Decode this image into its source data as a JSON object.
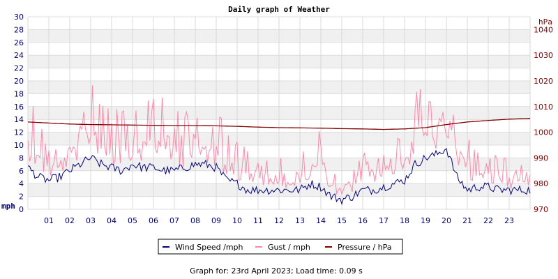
{
  "chart_data": {
    "type": "line",
    "title": "Daily graph of Weather",
    "y_left_unit": "mph",
    "y_right_unit": "hPa",
    "y_left_ticks": [
      "0",
      "2",
      "4",
      "6",
      "8",
      "10",
      "12",
      "14",
      "16",
      "18",
      "20",
      "22",
      "24",
      "26",
      "28",
      "30"
    ],
    "y_right_ticks": [
      "970",
      "980",
      "990",
      "1000",
      "1010",
      "1020",
      "1030",
      "1040"
    ],
    "x_ticks": [
      "01",
      "02",
      "03",
      "04",
      "05",
      "06",
      "07",
      "08",
      "09",
      "10",
      "11",
      "12",
      "13",
      "14",
      "15",
      "16",
      "17",
      "18",
      "19",
      "20",
      "21",
      "22",
      "23"
    ],
    "ylim_left": [
      0,
      30
    ],
    "ylim_right": [
      970,
      1045
    ],
    "xlim_hours": [
      0,
      24
    ],
    "grid": true,
    "legend": {
      "placement": "bottom-center"
    },
    "series": [
      {
        "name": "Wind Speed /mph",
        "axis": "left",
        "color": "#000080",
        "x": [
          0,
          0.5,
          1,
          1.5,
          2,
          2.5,
          3,
          3.5,
          4,
          4.5,
          5,
          5.5,
          6,
          6.5,
          7,
          7.5,
          8,
          8.5,
          9,
          9.5,
          10,
          10.5,
          11,
          11.5,
          12,
          12.5,
          13,
          13.5,
          14,
          14.5,
          15,
          15.5,
          16,
          16.5,
          17,
          17.5,
          18,
          18.5,
          19,
          19.5,
          20,
          20.5,
          21,
          21.5,
          22,
          22.5,
          23,
          23.5,
          24
        ],
        "values": [
          6.5,
          5,
          4.5,
          5,
          6,
          7,
          8,
          7,
          6.5,
          6,
          7,
          6.5,
          6.5,
          6,
          6,
          6.5,
          7,
          7,
          6.5,
          4.5,
          4,
          3,
          3,
          3,
          3,
          3,
          3,
          4,
          3.5,
          2,
          1.5,
          2,
          3,
          3,
          3.5,
          4,
          4.5,
          7,
          8,
          8.5,
          9.5,
          5,
          3,
          3.5,
          3.5,
          3,
          3,
          3,
          3
        ]
      },
      {
        "name": "Gust / mph",
        "axis": "left",
        "color": "#ff88aa",
        "x": [
          0,
          0.5,
          1,
          1.5,
          2,
          2.5,
          3,
          3.5,
          4,
          4.5,
          5,
          5.5,
          6,
          6.5,
          7,
          7.5,
          8,
          8.5,
          9,
          9.5,
          10,
          10.5,
          11,
          11.5,
          12,
          12.5,
          13,
          13.5,
          14,
          14.5,
          15,
          15.5,
          16,
          16.5,
          17,
          17.5,
          18,
          18.5,
          19,
          19.5,
          20,
          20.5,
          21,
          21.5,
          22,
          22.5,
          23,
          23.5,
          24
        ],
        "values": [
          12,
          9,
          7.5,
          8,
          10,
          12,
          15,
          12,
          10,
          10,
          12,
          11,
          13,
          11,
          10,
          10,
          11,
          11,
          10,
          8,
          7,
          6,
          6,
          5,
          5,
          5,
          5,
          7,
          9,
          4,
          3,
          4,
          6,
          6,
          8,
          8,
          9,
          12,
          13,
          14,
          16,
          10,
          7,
          6,
          6,
          5.5,
          5,
          5,
          5
        ]
      },
      {
        "name": "Pressure / hPa",
        "axis": "right",
        "color": "#800000",
        "x": [
          0,
          1,
          2,
          3,
          4,
          5,
          6,
          7,
          8,
          9,
          10,
          11,
          12,
          13,
          14,
          15,
          16,
          17,
          18,
          19,
          20,
          21,
          22,
          23,
          24
        ],
        "values": [
          1004,
          1003.6,
          1003.2,
          1003,
          1002.9,
          1002.8,
          1002.7,
          1002.6,
          1002.6,
          1002.5,
          1002.3,
          1002.0,
          1001.8,
          1001.7,
          1001.6,
          1001.4,
          1001.3,
          1001.1,
          1001.3,
          1001.8,
          1003.0,
          1004.0,
          1004.6,
          1005.1,
          1005.4
        ]
      }
    ]
  },
  "footer": {
    "text": "Graph for: 23rd April 2023; Load time: 0.09 s"
  }
}
